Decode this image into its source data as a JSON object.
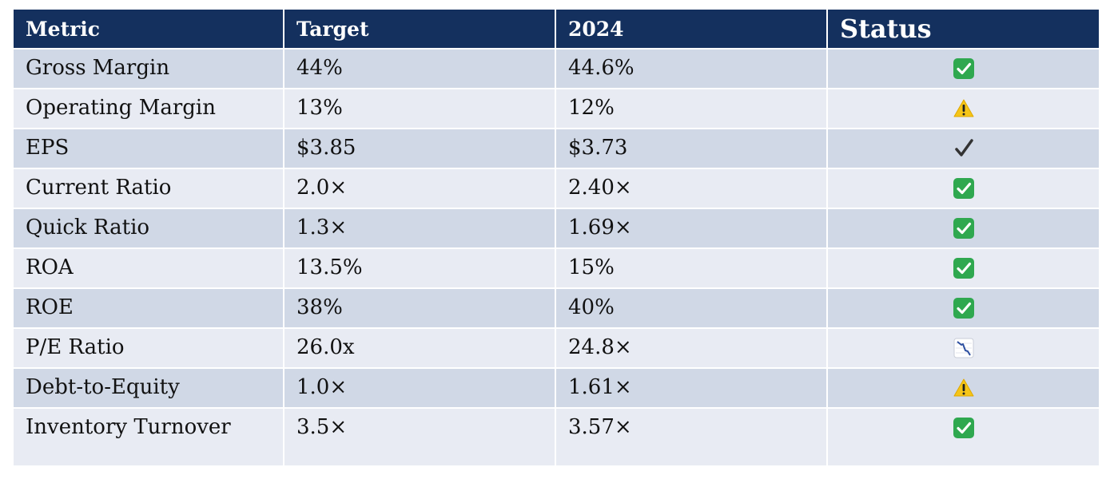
{
  "table": {
    "headers": {
      "metric": "Metric",
      "target": "Target",
      "year": "2024",
      "status": "Status"
    },
    "rows": [
      {
        "metric": "Gross Margin",
        "target": "44%",
        "actual": "44.6%",
        "status_icon": "green-check-icon"
      },
      {
        "metric": "Operating Margin",
        "target": "13%",
        "actual": "12%",
        "status_icon": "warning-icon"
      },
      {
        "metric": "EPS",
        "target": "$3.85",
        "actual": "$3.73",
        "status_icon": "checkmark-icon"
      },
      {
        "metric": "Current Ratio",
        "target": "2.0×",
        "actual": "2.40×",
        "status_icon": "green-check-icon"
      },
      {
        "metric": "Quick Ratio",
        "target": "1.3×",
        "actual": "1.69×",
        "status_icon": "green-check-icon"
      },
      {
        "metric": "ROA",
        "target": "13.5%",
        "actual": "15%",
        "status_icon": "green-check-icon"
      },
      {
        "metric": "ROE",
        "target": "38%",
        "actual": "40%",
        "status_icon": "green-check-icon"
      },
      {
        "metric": "P/E Ratio",
        "target": "26.0x",
        "actual": "24.8×",
        "status_icon": "chart-decreasing-icon"
      },
      {
        "metric": "Debt-to-Equity",
        "target": "1.0×",
        "actual": "1.61×",
        "status_icon": "warning-icon"
      },
      {
        "metric": "Inventory Turnover",
        "target": "3.5×",
        "actual": "3.57×",
        "status_icon": "green-check-icon"
      }
    ]
  },
  "colors": {
    "header_bg": "#14305e",
    "row_odd": "#d0d8e6",
    "row_even": "#e8ebf3",
    "check_green": "#2fa84f",
    "warning_yellow": "#f5c518"
  }
}
